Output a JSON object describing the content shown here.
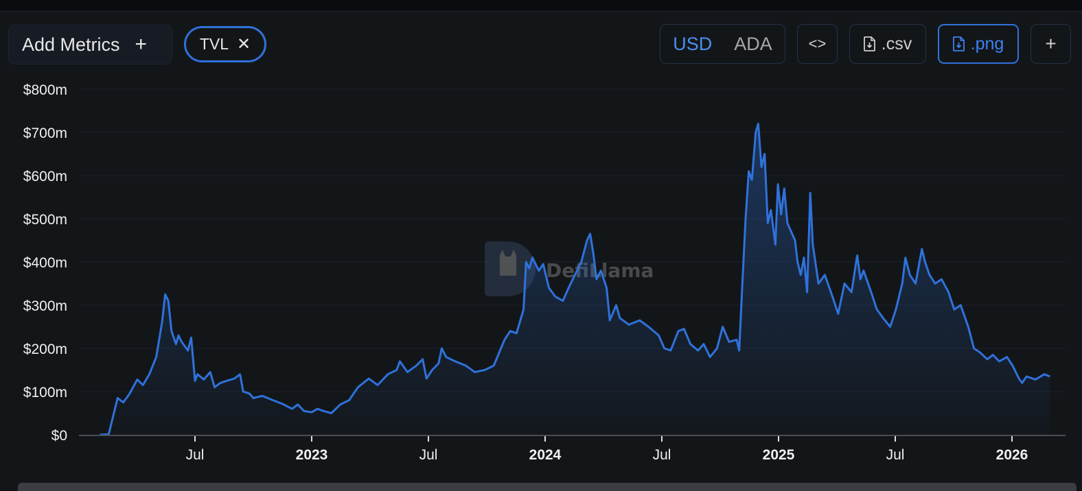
{
  "toolbar": {
    "add_metrics_label": "Add Metrics",
    "add_metrics_icon": "plus-icon",
    "metric_chip_label": "TVL",
    "metric_chip_remove_icon": "close-icon",
    "currency_options": [
      "USD",
      "ADA"
    ],
    "currency_selected": "USD",
    "embed_icon": "code-brackets-icon",
    "csv_label": ".csv",
    "csv_icon": "file-download-icon",
    "png_label": ".png",
    "png_icon": "file-download-icon",
    "more_icon": "plus-icon"
  },
  "watermark": {
    "text": "DefiLlama",
    "icon": "llama-logo-icon"
  },
  "colors": {
    "line": "#2f72db",
    "accent": "#2f72db",
    "usd_active": "#4b8ff0",
    "background": "#131619"
  },
  "chart_data": {
    "type": "area",
    "title": "",
    "series": [
      {
        "name": "TVL",
        "unit": "USD"
      }
    ],
    "xlabel": "",
    "ylabel": "",
    "ylim": [
      0,
      800000000
    ],
    "y_ticks": [
      "$0",
      "$100m",
      "$200m",
      "$300m",
      "$400m",
      "$500m",
      "$600m",
      "$700m",
      "$800m"
    ],
    "x_ticks": [
      {
        "label": "Jul",
        "bold": false
      },
      {
        "label": "2023",
        "bold": true
      },
      {
        "label": "Jul",
        "bold": false
      },
      {
        "label": "2024",
        "bold": true
      },
      {
        "label": "Jul",
        "bold": false
      },
      {
        "label": "2025",
        "bold": true
      },
      {
        "label": "Jul",
        "bold": false
      },
      {
        "label": "2026",
        "bold": true
      }
    ],
    "grid": true,
    "legend": "none",
    "points": [
      [
        "2022-02",
        0
      ],
      [
        "2022-02-15",
        1
      ],
      [
        "2022-03-01",
        85
      ],
      [
        "2022-03-10",
        75
      ],
      [
        "2022-03-20",
        95
      ],
      [
        "2022-04-01",
        128
      ],
      [
        "2022-04-10",
        115
      ],
      [
        "2022-04-20",
        140
      ],
      [
        "2022-05-01",
        180
      ],
      [
        "2022-05-10",
        260
      ],
      [
        "2022-05-15",
        325
      ],
      [
        "2022-05-20",
        310
      ],
      [
        "2022-05-25",
        240
      ],
      [
        "2022-06-01",
        210
      ],
      [
        "2022-06-05",
        230
      ],
      [
        "2022-06-10",
        215
      ],
      [
        "2022-06-20",
        195
      ],
      [
        "2022-06-25",
        225
      ],
      [
        "2022-07-01",
        125
      ],
      [
        "2022-07-05",
        140
      ],
      [
        "2022-07-15",
        128
      ],
      [
        "2022-07-25",
        145
      ],
      [
        "2022-08-01",
        110
      ],
      [
        "2022-08-10",
        120
      ],
      [
        "2022-08-20",
        125
      ],
      [
        "2022-09-01",
        130
      ],
      [
        "2022-09-10",
        140
      ],
      [
        "2022-09-15",
        100
      ],
      [
        "2022-09-25",
        95
      ],
      [
        "2022-10-01",
        85
      ],
      [
        "2022-10-15",
        90
      ],
      [
        "2022-11-01",
        80
      ],
      [
        "2022-11-15",
        72
      ],
      [
        "2022-12-01",
        60
      ],
      [
        "2022-12-10",
        70
      ],
      [
        "2022-12-20",
        55
      ],
      [
        "2023-01-01",
        52
      ],
      [
        "2023-01-10",
        60
      ],
      [
        "2023-01-20",
        55
      ],
      [
        "2023-02-01",
        50
      ],
      [
        "2023-02-15",
        70
      ],
      [
        "2023-03-01",
        80
      ],
      [
        "2023-03-15",
        110
      ],
      [
        "2023-04-01",
        130
      ],
      [
        "2023-04-15",
        115
      ],
      [
        "2023-05-01",
        140
      ],
      [
        "2023-05-15",
        150
      ],
      [
        "2023-05-20",
        170
      ],
      [
        "2023-06-01",
        145
      ],
      [
        "2023-06-15",
        160
      ],
      [
        "2023-06-25",
        175
      ],
      [
        "2023-07-01",
        130
      ],
      [
        "2023-07-10",
        150
      ],
      [
        "2023-07-20",
        165
      ],
      [
        "2023-07-25",
        200
      ],
      [
        "2023-08-01",
        180
      ],
      [
        "2023-08-15",
        170
      ],
      [
        "2023-09-01",
        160
      ],
      [
        "2023-09-15",
        145
      ],
      [
        "2023-10-01",
        150
      ],
      [
        "2023-10-15",
        160
      ],
      [
        "2023-11-01",
        220
      ],
      [
        "2023-11-10",
        240
      ],
      [
        "2023-11-20",
        235
      ],
      [
        "2023-12-01",
        290
      ],
      [
        "2023-12-05",
        400
      ],
      [
        "2023-12-10",
        385
      ],
      [
        "2023-12-15",
        410
      ],
      [
        "2023-12-25",
        380
      ],
      [
        "2024-01-01",
        395
      ],
      [
        "2024-01-10",
        340
      ],
      [
        "2024-01-20",
        320
      ],
      [
        "2024-02-01",
        310
      ],
      [
        "2024-02-10",
        340
      ],
      [
        "2024-02-20",
        370
      ],
      [
        "2024-03-01",
        400
      ],
      [
        "2024-03-10",
        450
      ],
      [
        "2024-03-15",
        465
      ],
      [
        "2024-03-20",
        420
      ],
      [
        "2024-03-25",
        360
      ],
      [
        "2024-04-01",
        380
      ],
      [
        "2024-04-10",
        340
      ],
      [
        "2024-04-15",
        265
      ],
      [
        "2024-04-25",
        300
      ],
      [
        "2024-05-01",
        270
      ],
      [
        "2024-05-15",
        255
      ],
      [
        "2024-06-01",
        265
      ],
      [
        "2024-06-15",
        250
      ],
      [
        "2024-07-01",
        230
      ],
      [
        "2024-07-10",
        200
      ],
      [
        "2024-07-20",
        195
      ],
      [
        "2024-08-01",
        240
      ],
      [
        "2024-08-10",
        245
      ],
      [
        "2024-08-20",
        210
      ],
      [
        "2024-09-01",
        195
      ],
      [
        "2024-09-10",
        210
      ],
      [
        "2024-09-20",
        180
      ],
      [
        "2024-10-01",
        200
      ],
      [
        "2024-10-10",
        250
      ],
      [
        "2024-10-20",
        215
      ],
      [
        "2024-11-01",
        220
      ],
      [
        "2024-11-05",
        195
      ],
      [
        "2024-11-10",
        350
      ],
      [
        "2024-11-15",
        500
      ],
      [
        "2024-11-20",
        610
      ],
      [
        "2024-11-25",
        590
      ],
      [
        "2024-12-01",
        700
      ],
      [
        "2024-12-05",
        720
      ],
      [
        "2024-12-10",
        620
      ],
      [
        "2024-12-15",
        650
      ],
      [
        "2024-12-20",
        490
      ],
      [
        "2024-12-25",
        520
      ],
      [
        "2025-01-01",
        440
      ],
      [
        "2025-01-05",
        580
      ],
      [
        "2025-01-10",
        510
      ],
      [
        "2025-01-15",
        570
      ],
      [
        "2025-01-20",
        490
      ],
      [
        "2025-02-01",
        450
      ],
      [
        "2025-02-05",
        400
      ],
      [
        "2025-02-10",
        370
      ],
      [
        "2025-02-15",
        410
      ],
      [
        "2025-02-20",
        330
      ],
      [
        "2025-02-25",
        560
      ],
      [
        "2025-03-01",
        440
      ],
      [
        "2025-03-10",
        350
      ],
      [
        "2025-03-20",
        370
      ],
      [
        "2025-04-01",
        320
      ],
      [
        "2025-04-10",
        280
      ],
      [
        "2025-04-20",
        350
      ],
      [
        "2025-05-01",
        330
      ],
      [
        "2025-05-10",
        415
      ],
      [
        "2025-05-15",
        360
      ],
      [
        "2025-05-20",
        380
      ],
      [
        "2025-06-01",
        330
      ],
      [
        "2025-06-10",
        290
      ],
      [
        "2025-06-20",
        270
      ],
      [
        "2025-07-01",
        250
      ],
      [
        "2025-07-10",
        290
      ],
      [
        "2025-07-20",
        350
      ],
      [
        "2025-07-25",
        410
      ],
      [
        "2025-08-01",
        370
      ],
      [
        "2025-08-10",
        350
      ],
      [
        "2025-08-15",
        390
      ],
      [
        "2025-08-20",
        430
      ],
      [
        "2025-08-25",
        400
      ],
      [
        "2025-09-01",
        370
      ],
      [
        "2025-09-10",
        350
      ],
      [
        "2025-09-20",
        360
      ],
      [
        "2025-10-01",
        330
      ],
      [
        "2025-10-10",
        290
      ],
      [
        "2025-10-20",
        300
      ],
      [
        "2025-11-01",
        250
      ],
      [
        "2025-11-10",
        200
      ],
      [
        "2025-11-20",
        190
      ],
      [
        "2025-12-01",
        175
      ],
      [
        "2025-12-10",
        185
      ],
      [
        "2025-12-20",
        170
      ],
      [
        "2026-01-01",
        180
      ],
      [
        "2026-01-10",
        160
      ],
      [
        "2026-01-20",
        130
      ],
      [
        "2026-01-25",
        120
      ],
      [
        "2026-02-01",
        135
      ],
      [
        "2026-02-15",
        128
      ],
      [
        "2026-03-01",
        140
      ],
      [
        "2026-03-10",
        135
      ]
    ],
    "values_unit": "USD millions (approx.)"
  }
}
